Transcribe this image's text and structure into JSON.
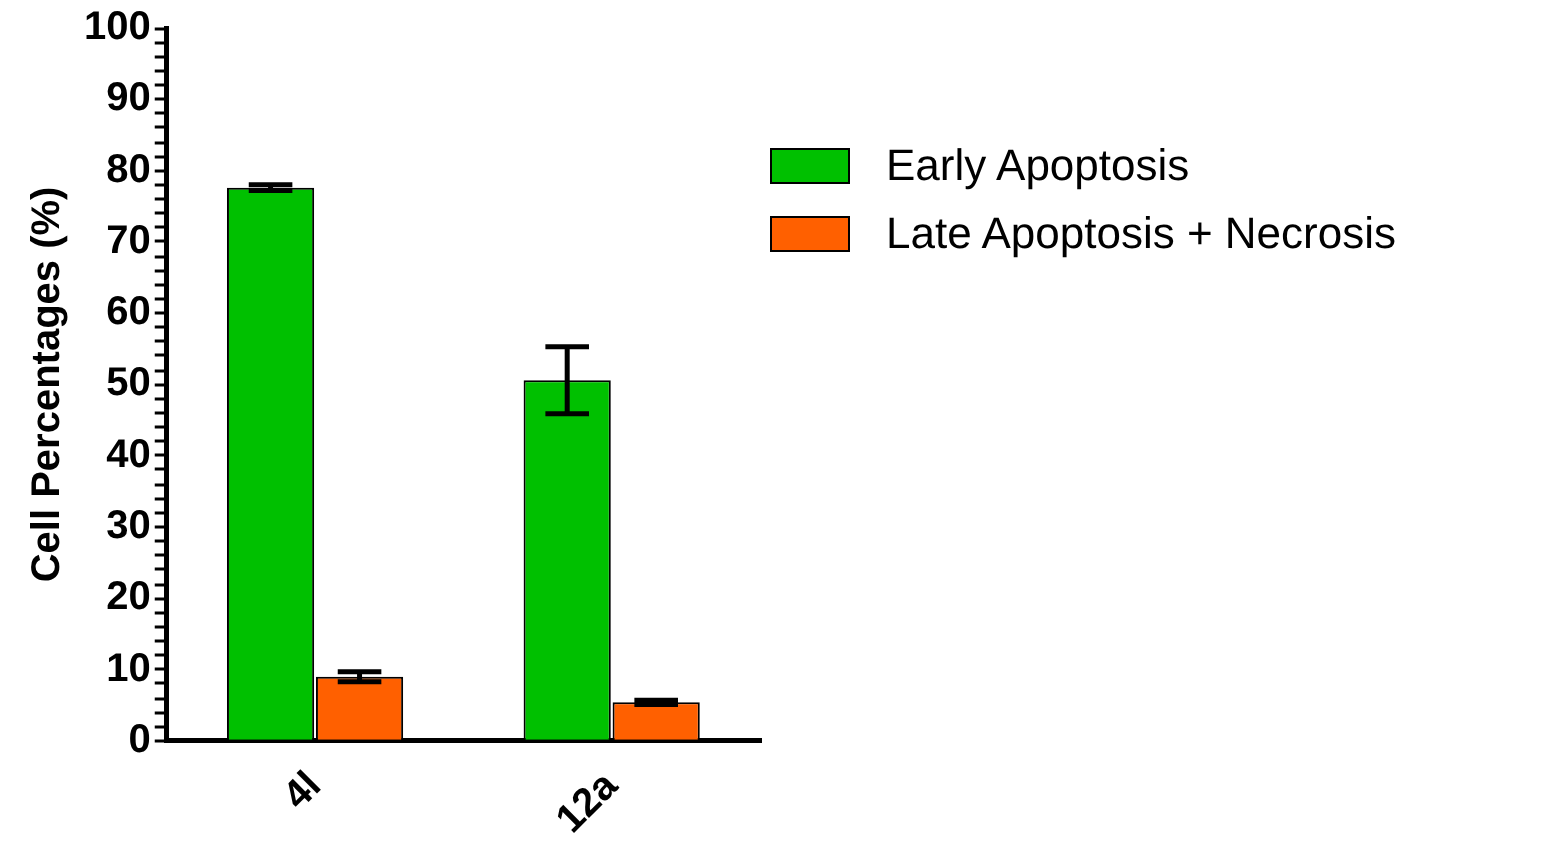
{
  "chart_data": {
    "type": "bar",
    "ylabel": "Cell Percentages (%)",
    "categories": [
      "4l",
      "12a"
    ],
    "series": [
      {
        "name": "Early Apoptosis",
        "color": "#00c000",
        "values": [
          77.6,
          50.6
        ],
        "errors": [
          0.4,
          4.7
        ]
      },
      {
        "name": "Late Apoptosis + Necrosis",
        "color": "#ff6000",
        "values": [
          9.0,
          5.4
        ],
        "errors": [
          0.7,
          0.3
        ]
      }
    ],
    "ylim": [
      0,
      100
    ],
    "yticks": [
      0,
      {
        "value": 2,
        "label": null
      },
      {
        "value": 4,
        "label": null
      },
      {
        "value": 6,
        "label": null
      },
      {
        "value": 8,
        "label": null
      },
      10,
      {
        "value": 12,
        "label": null
      },
      {
        "value": 14,
        "label": null
      },
      {
        "value": 16,
        "label": null
      },
      {
        "value": 18,
        "label": null
      },
      20,
      {
        "value": 22,
        "label": null
      },
      {
        "value": 24,
        "label": null
      },
      {
        "value": 26,
        "label": null
      },
      {
        "value": 28,
        "label": null
      },
      30,
      {
        "value": 32,
        "label": null
      },
      {
        "value": 34,
        "label": null
      },
      {
        "value": 36,
        "label": null
      },
      {
        "value": 38,
        "label": null
      },
      40,
      {
        "value": 42,
        "label": null
      },
      {
        "value": 44,
        "label": null
      },
      {
        "value": 46,
        "label": null
      },
      {
        "value": 48,
        "label": null
      },
      50,
      {
        "value": 52,
        "label": null
      },
      {
        "value": 54,
        "label": null
      },
      {
        "value": 56,
        "label": null
      },
      {
        "value": 58,
        "label": null
      },
      60,
      {
        "value": 62,
        "label": null
      },
      {
        "value": 64,
        "label": null
      },
      {
        "value": 66,
        "label": null
      },
      {
        "value": 68,
        "label": null
      },
      70,
      {
        "value": 72,
        "label": null
      },
      {
        "value": 74,
        "label": null
      },
      {
        "value": 76,
        "label": null
      },
      {
        "value": 78,
        "label": null
      },
      80,
      {
        "value": 82,
        "label": null
      },
      {
        "value": 84,
        "label": null
      },
      {
        "value": 86,
        "label": null
      },
      {
        "value": 88,
        "label": null
      },
      90,
      {
        "value": 92,
        "label": null
      },
      {
        "value": 94,
        "label": null
      },
      {
        "value": 96,
        "label": null
      },
      {
        "value": 98,
        "label": null
      },
      100
    ],
    "grid": false,
    "legend": "right"
  }
}
